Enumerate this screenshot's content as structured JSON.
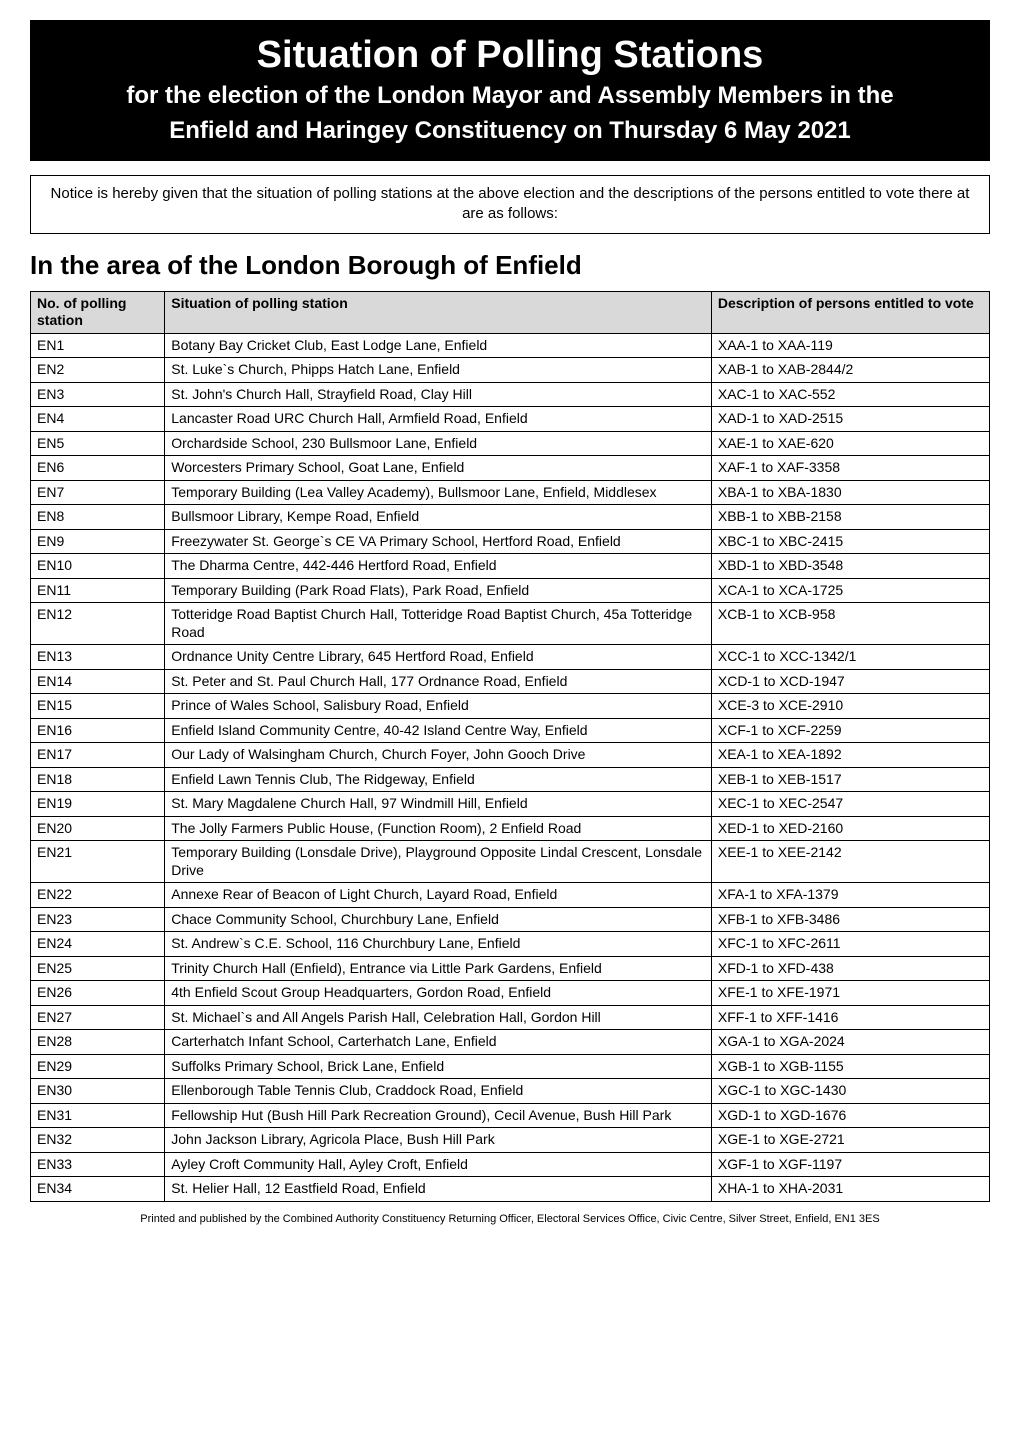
{
  "header": {
    "title": "Situation of Polling Stations",
    "subtitle": "for the election of the London Mayor and Assembly Members in the",
    "eventline": "Enfield and Haringey Constituency on Thursday 6 May 2021"
  },
  "notice": "Notice is hereby given that the situation of polling stations at the above election and the descriptions of the persons entitled to vote there at are as follows:",
  "section_heading": "In the area of the London Borough of Enfield",
  "table": {
    "columns": [
      "No. of polling station",
      "Situation of polling station",
      "Description of persons entitled to vote"
    ],
    "header_bg": "#d9d9d9",
    "border_color": "#000000",
    "rows": [
      [
        "EN1",
        "Botany Bay Cricket Club, East Lodge Lane, Enfield",
        "XAA-1 to XAA-119"
      ],
      [
        "EN2",
        "St. Luke`s Church, Phipps Hatch Lane, Enfield",
        "XAB-1 to XAB-2844/2"
      ],
      [
        "EN3",
        "St. John's Church Hall, Strayfield Road, Clay Hill",
        "XAC-1 to XAC-552"
      ],
      [
        "EN4",
        "Lancaster Road URC Church Hall, Armfield Road, Enfield",
        "XAD-1 to XAD-2515"
      ],
      [
        "EN5",
        "Orchardside School, 230 Bullsmoor Lane, Enfield",
        "XAE-1 to XAE-620"
      ],
      [
        "EN6",
        "Worcesters Primary School, Goat Lane, Enfield",
        "XAF-1 to XAF-3358"
      ],
      [
        "EN7",
        "Temporary Building (Lea Valley Academy), Bullsmoor Lane, Enfield, Middlesex",
        "XBA-1 to XBA-1830"
      ],
      [
        "EN8",
        "Bullsmoor Library, Kempe Road, Enfield",
        "XBB-1 to XBB-2158"
      ],
      [
        "EN9",
        "Freezywater St. George`s CE VA Primary School, Hertford Road, Enfield",
        "XBC-1 to XBC-2415"
      ],
      [
        "EN10",
        "The Dharma Centre, 442-446 Hertford Road, Enfield",
        "XBD-1 to XBD-3548"
      ],
      [
        "EN11",
        "Temporary Building (Park Road Flats), Park Road, Enfield",
        "XCA-1 to XCA-1725"
      ],
      [
        "EN12",
        "Totteridge Road Baptist Church Hall, Totteridge Road Baptist Church, 45a Totteridge Road",
        "XCB-1 to XCB-958"
      ],
      [
        "EN13",
        "Ordnance Unity Centre Library, 645 Hertford Road, Enfield",
        "XCC-1 to XCC-1342/1"
      ],
      [
        "EN14",
        "St. Peter and St. Paul Church Hall, 177 Ordnance Road, Enfield",
        "XCD-1 to XCD-1947"
      ],
      [
        "EN15",
        "Prince of Wales School, Salisbury Road, Enfield",
        "XCE-3 to XCE-2910"
      ],
      [
        "EN16",
        "Enfield Island Community Centre, 40-42 Island Centre Way, Enfield",
        "XCF-1 to XCF-2259"
      ],
      [
        "EN17",
        "Our Lady of Walsingham Church, Church Foyer, John Gooch Drive",
        "XEA-1 to XEA-1892"
      ],
      [
        "EN18",
        "Enfield Lawn Tennis Club, The Ridgeway, Enfield",
        "XEB-1 to XEB-1517"
      ],
      [
        "EN19",
        "St. Mary Magdalene Church Hall, 97 Windmill Hill, Enfield",
        "XEC-1 to XEC-2547"
      ],
      [
        "EN20",
        "The Jolly Farmers Public House, (Function Room), 2 Enfield Road",
        "XED-1 to XED-2160"
      ],
      [
        "EN21",
        "Temporary Building (Lonsdale Drive), Playground Opposite Lindal Crescent, Lonsdale Drive",
        "XEE-1 to XEE-2142"
      ],
      [
        "EN22",
        "Annexe Rear of Beacon of Light Church, Layard Road, Enfield",
        "XFA-1 to XFA-1379"
      ],
      [
        "EN23",
        "Chace Community School, Churchbury Lane, Enfield",
        "XFB-1 to XFB-3486"
      ],
      [
        "EN24",
        "St. Andrew`s C.E. School, 116 Churchbury Lane, Enfield",
        "XFC-1 to XFC-2611"
      ],
      [
        "EN25",
        "Trinity Church Hall (Enfield), Entrance via Little Park Gardens, Enfield",
        "XFD-1 to XFD-438"
      ],
      [
        "EN26",
        "4th Enfield Scout Group Headquarters, Gordon Road, Enfield",
        "XFE-1 to XFE-1971"
      ],
      [
        "EN27",
        "St. Michael`s and All Angels Parish Hall, Celebration Hall, Gordon Hill",
        "XFF-1 to XFF-1416"
      ],
      [
        "EN28",
        "Carterhatch Infant School, Carterhatch Lane, Enfield",
        "XGA-1 to XGA-2024"
      ],
      [
        "EN29",
        "Suffolks Primary School, Brick Lane, Enfield",
        "XGB-1 to XGB-1155"
      ],
      [
        "EN30",
        "Ellenborough Table Tennis Club, Craddock Road, Enfield",
        "XGC-1 to XGC-1430"
      ],
      [
        "EN31",
        "Fellowship Hut (Bush Hill Park Recreation Ground), Cecil Avenue, Bush Hill Park",
        "XGD-1 to XGD-1676"
      ],
      [
        "EN32",
        "John Jackson Library, Agricola Place, Bush Hill Park",
        "XGE-1 to XGE-2721"
      ],
      [
        "EN33",
        "Ayley Croft Community Hall, Ayley Croft, Enfield",
        "XGF-1 to XGF-1197"
      ],
      [
        "EN34",
        "St. Helier Hall, 12 Eastfield Road, Enfield",
        "XHA-1 to XHA-2031"
      ]
    ]
  },
  "footer": "Printed and published by the Combined Authority Constituency Returning Officer, Electoral Services Office, Civic Centre, Silver Street, Enfield, EN1 3ES"
}
